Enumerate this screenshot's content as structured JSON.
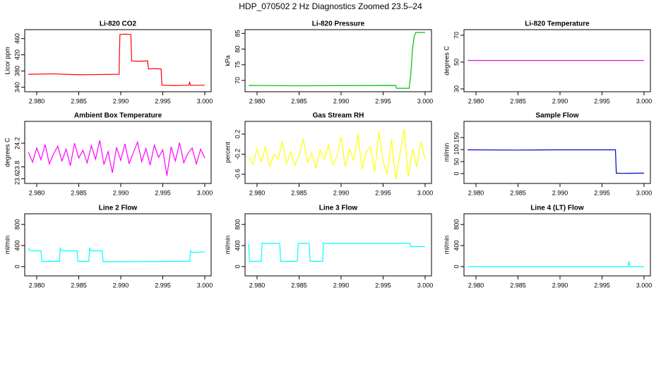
{
  "title": "HDP_070502  2 Hz Diagnostics Zoomed 23.5–24",
  "chart_data": [
    {
      "type": "line",
      "title": "Li-820 CO2",
      "ylabel": "Licor ppm",
      "color": "#ff0000",
      "x": [
        2.979,
        2.982,
        2.985,
        2.9898,
        2.9899,
        2.9905,
        2.9912,
        2.9913,
        2.992,
        2.9932,
        2.9933,
        2.994,
        2.9948,
        2.9949,
        2.9965,
        2.9981,
        2.9982,
        2.9983,
        3.0
      ],
      "values": [
        372,
        373,
        371,
        372,
        470,
        471,
        470,
        405,
        404,
        405,
        385,
        386,
        385,
        345,
        344,
        345,
        352,
        345,
        345
      ],
      "xlim": [
        2.97857,
        3.00076
      ],
      "xticks": [
        {
          "value": 2.98,
          "label": "2.980"
        },
        {
          "value": 2.985,
          "label": "2.985"
        },
        {
          "value": 2.99,
          "label": "2.990"
        },
        {
          "value": 2.995,
          "label": "2.995"
        },
        {
          "value": 3.0,
          "label": "3.000"
        }
      ],
      "ylim": [
        329,
        482
      ],
      "yticks": [
        340,
        380,
        420,
        460
      ]
    },
    {
      "type": "line",
      "title": "Li-820 Pressure",
      "ylabel": "kPa",
      "color": "#00c000",
      "x": [
        2.979,
        2.985,
        2.9965,
        2.9966,
        2.9981,
        2.9983,
        2.9985,
        2.9987,
        2.9989,
        3.0
      ],
      "values": [
        68.4,
        68.3,
        68.4,
        67.5,
        67.5,
        72,
        80,
        84,
        85.3,
        85.3
      ],
      "xlim": [
        2.97857,
        3.00076
      ],
      "xticks": [
        {
          "value": 2.98,
          "label": "2.980"
        },
        {
          "value": 2.985,
          "label": "2.985"
        },
        {
          "value": 2.99,
          "label": "2.990"
        },
        {
          "value": 2.995,
          "label": "2.995"
        },
        {
          "value": 3.0,
          "label": "3.000"
        }
      ],
      "ylim": [
        66.4,
        86.2
      ],
      "yticks": [
        70,
        75,
        80,
        85
      ]
    },
    {
      "type": "line",
      "title": "Li-820 Temperature",
      "ylabel": "degrees C",
      "color": "#cc00cc",
      "x": [
        2.979,
        3.0
      ],
      "values": [
        51.2,
        51.2
      ],
      "xlim": [
        2.97857,
        3.00076
      ],
      "xticks": [
        {
          "value": 2.98,
          "label": "2.980"
        },
        {
          "value": 2.985,
          "label": "2.985"
        },
        {
          "value": 2.99,
          "label": "2.990"
        },
        {
          "value": 2.995,
          "label": "2.995"
        },
        {
          "value": 3.0,
          "label": "3.000"
        }
      ],
      "ylim": [
        27.9,
        74.2
      ],
      "yticks": [
        30,
        50,
        70
      ]
    },
    {
      "type": "line",
      "title": "Ambient Box Temperature",
      "ylabel": "degrees C",
      "color": "#ff00ff",
      "x": [
        2.979,
        2.9795,
        2.98,
        2.9805,
        2.981,
        2.9815,
        2.982,
        2.9825,
        2.983,
        2.9835,
        2.984,
        2.9845,
        2.985,
        2.9855,
        2.986,
        2.9865,
        2.987,
        2.9875,
        2.988,
        2.9885,
        2.989,
        2.9895,
        2.99,
        2.9905,
        2.991,
        2.9915,
        2.992,
        2.9925,
        2.993,
        2.9935,
        2.994,
        2.9945,
        2.995,
        2.9955,
        2.996,
        2.9965,
        2.997,
        2.9975,
        2.998,
        2.9985,
        2.999,
        2.9995,
        3.0
      ],
      "values": [
        24.05,
        23.88,
        24.12,
        23.92,
        24.18,
        23.85,
        24.02,
        24.15,
        23.9,
        24.1,
        23.82,
        24.2,
        23.95,
        24.08,
        23.87,
        24.16,
        23.93,
        24.25,
        23.84,
        24.06,
        23.7,
        24.13,
        23.91,
        24.19,
        23.86,
        24.04,
        24.22,
        23.89,
        24.11,
        23.83,
        24.17,
        23.96,
        24.09,
        23.65,
        24.14,
        23.9,
        24.21,
        23.87,
        24.03,
        24.12,
        23.85,
        24.1,
        23.95
      ],
      "xlim": [
        2.97857,
        3.00076
      ],
      "xticks": [
        {
          "value": 2.98,
          "label": "2.980"
        },
        {
          "value": 2.985,
          "label": "2.985"
        },
        {
          "value": 2.99,
          "label": "2.990"
        },
        {
          "value": 2.995,
          "label": "2.995"
        },
        {
          "value": 3.0,
          "label": "3.000"
        }
      ],
      "ylim": [
        23.52,
        24.57
      ],
      "yticks": [
        23.6,
        23.8,
        24.2
      ]
    },
    {
      "type": "line",
      "title": "Gas Stream RH",
      "ylabel": "percent",
      "color": "#ffff00",
      "x": [
        2.979,
        2.9795,
        2.98,
        2.9805,
        2.981,
        2.9815,
        2.982,
        2.9825,
        2.983,
        2.9835,
        2.984,
        2.9845,
        2.985,
        2.9855,
        2.986,
        2.9865,
        2.987,
        2.9875,
        2.988,
        2.9885,
        2.989,
        2.9895,
        2.99,
        2.9905,
        2.991,
        2.9915,
        2.992,
        2.9925,
        2.993,
        2.9935,
        2.994,
        2.9945,
        2.995,
        2.9955,
        2.996,
        2.9965,
        2.997,
        2.9975,
        2.998,
        2.9985,
        2.999,
        2.9995,
        3.0
      ],
      "values": [
        -0.25,
        -0.4,
        -0.1,
        -0.35,
        -0.05,
        -0.45,
        -0.2,
        -0.3,
        0.05,
        -0.38,
        -0.15,
        -0.42,
        -0.22,
        0.1,
        -0.36,
        -0.18,
        -0.48,
        -0.12,
        -0.3,
        -0.02,
        -0.4,
        -0.25,
        0.15,
        -0.45,
        -0.1,
        -0.33,
        0.2,
        -0.5,
        -0.15,
        -0.05,
        -0.55,
        0.25,
        -0.35,
        -0.6,
        0.1,
        -0.7,
        -0.2,
        0.3,
        -0.65,
        -0.1,
        -0.45,
        0.05,
        -0.3
      ],
      "xlim": [
        2.97857,
        3.00076
      ],
      "xticks": [
        {
          "value": 2.98,
          "label": "2.980"
        },
        {
          "value": 2.985,
          "label": "2.985"
        },
        {
          "value": 2.99,
          "label": "2.990"
        },
        {
          "value": 2.995,
          "label": "2.995"
        },
        {
          "value": 3.0,
          "label": "3.000"
        }
      ],
      "ylim": [
        -0.782,
        0.453
      ],
      "yticks": [
        -0.6,
        -0.2,
        0.2
      ]
    },
    {
      "type": "line",
      "title": "Sample Flow",
      "ylabel": "ml/min",
      "color": "#0000cc",
      "x": [
        2.979,
        2.985,
        2.99,
        2.9966,
        2.9967,
        2.9975,
        3.0
      ],
      "values": [
        99,
        98,
        99,
        99,
        2,
        1,
        2
      ],
      "xlim": [
        2.97857,
        3.00076
      ],
      "xticks": [
        {
          "value": 2.98,
          "label": "2.980"
        },
        {
          "value": 2.985,
          "label": "2.985"
        },
        {
          "value": 2.99,
          "label": "2.990"
        },
        {
          "value": 2.995,
          "label": "2.995"
        },
        {
          "value": 3.0,
          "label": "3.000"
        }
      ],
      "ylim": [
        -41,
        217.6
      ],
      "yticks": [
        0,
        50,
        100,
        150
      ]
    },
    {
      "type": "line",
      "title": "Line 2 Flow",
      "ylabel": "ml/min",
      "color": "#00ffff",
      "x": [
        2.979,
        2.9792,
        2.9805,
        2.9806,
        2.9827,
        2.9828,
        2.983,
        2.9848,
        2.9849,
        2.9862,
        2.9863,
        2.9865,
        2.9878,
        2.9879,
        2.9982,
        2.9983,
        2.9985,
        3.0
      ],
      "values": [
        350,
        300,
        300,
        100,
        100,
        350,
        300,
        300,
        100,
        100,
        350,
        300,
        300,
        90,
        100,
        300,
        270,
        280
      ],
      "xlim": [
        2.97857,
        3.00076
      ],
      "xticks": [
        {
          "value": 2.98,
          "label": "2.980"
        },
        {
          "value": 2.985,
          "label": "2.985"
        },
        {
          "value": 2.99,
          "label": "2.990"
        },
        {
          "value": 2.995,
          "label": "2.995"
        },
        {
          "value": 3.0,
          "label": "3.000"
        }
      ],
      "ylim": [
        -176,
        1003
      ],
      "yticks": [
        0,
        400,
        800
      ]
    },
    {
      "type": "line",
      "title": "Line 3 Flow",
      "ylabel": "ml/min",
      "color": "#00ffff",
      "x": [
        2.979,
        2.9791,
        2.9805,
        2.9806,
        2.9827,
        2.9828,
        2.9848,
        2.9849,
        2.9862,
        2.9863,
        2.9878,
        2.9879,
        2.9982,
        2.9983,
        3.0
      ],
      "values": [
        430,
        100,
        100,
        440,
        440,
        100,
        100,
        440,
        440,
        100,
        100,
        440,
        440,
        380,
        380
      ],
      "xlim": [
        2.97857,
        3.00076
      ],
      "xticks": [
        {
          "value": 2.98,
          "label": "2.980"
        },
        {
          "value": 2.985,
          "label": "2.985"
        },
        {
          "value": 2.99,
          "label": "2.990"
        },
        {
          "value": 2.995,
          "label": "2.995"
        },
        {
          "value": 3.0,
          "label": "3.000"
        }
      ],
      "ylim": [
        -176,
        1003
      ],
      "yticks": [
        0,
        400,
        800
      ]
    },
    {
      "type": "line",
      "title": "Line 4 (LT) Flow",
      "ylabel": "ml/min",
      "color": "#00ffff",
      "x": [
        2.979,
        2.9981,
        2.9982,
        2.9983,
        3.0
      ],
      "values": [
        0,
        0,
        100,
        0,
        0
      ],
      "xlim": [
        2.97857,
        3.00076
      ],
      "xticks": [
        {
          "value": 2.98,
          "label": "2.980"
        },
        {
          "value": 2.985,
          "label": "2.985"
        },
        {
          "value": 2.99,
          "label": "2.990"
        },
        {
          "value": 2.995,
          "label": "2.995"
        },
        {
          "value": 3.0,
          "label": "3.000"
        }
      ],
      "ylim": [
        -176,
        1003
      ],
      "yticks": [
        0,
        400,
        800
      ]
    }
  ]
}
